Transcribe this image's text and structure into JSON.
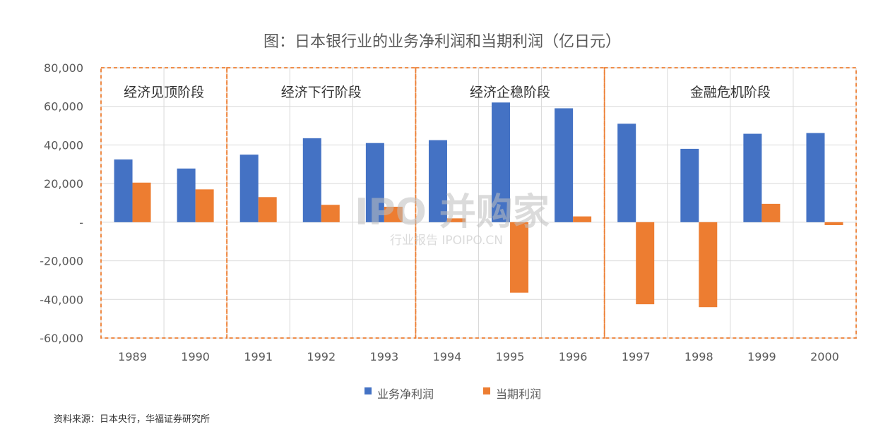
{
  "chart_data": {
    "type": "bar",
    "title": "图：日本银行业的业务净利润和当期利润（亿日元）",
    "categories": [
      "1989",
      "1990",
      "1991",
      "1992",
      "1993",
      "1994",
      "1995",
      "1996",
      "1997",
      "1998",
      "1999",
      "2000"
    ],
    "series": [
      {
        "name": "业务净利润",
        "color": "#4472C4",
        "values": [
          32500,
          27800,
          35000,
          43500,
          41000,
          42500,
          62000,
          59000,
          51000,
          38000,
          45800,
          46200
        ]
      },
      {
        "name": "当期利润",
        "color": "#ED7D31",
        "values": [
          20500,
          17000,
          13000,
          9000,
          8000,
          2000,
          -36500,
          3000,
          -42500,
          -44000,
          9500,
          -1500
        ]
      }
    ],
    "ylim": [
      -60000,
      80000
    ],
    "yticks": [
      80000,
      60000,
      40000,
      20000,
      0,
      -20000,
      -40000,
      -60000
    ],
    "ytick_labels": [
      "80,000",
      "60,000",
      "40,000",
      "20,000",
      "-",
      "-20,000",
      "-40,000",
      "-60,000"
    ],
    "grid": true,
    "legend_position": "bottom",
    "phases": [
      {
        "label": "经济见顶阶段",
        "start": 0,
        "end": 1,
        "border_color": "#ED7D31"
      },
      {
        "label": "经济下行阶段",
        "start": 2,
        "end": 4,
        "border_color": "#ED7D31"
      },
      {
        "label": "经济企稳阶段",
        "start": 5,
        "end": 7,
        "border_color": "#ED7D31"
      },
      {
        "label": "金融危机阶段",
        "start": 8,
        "end": 11,
        "border_color": "#ED7D31"
      }
    ]
  },
  "source_note": "资料来源：日本央行，华福证券研究所",
  "watermark": {
    "brand": "IPO 并购家",
    "sub": "行业报告 IPOIPO.CN"
  }
}
